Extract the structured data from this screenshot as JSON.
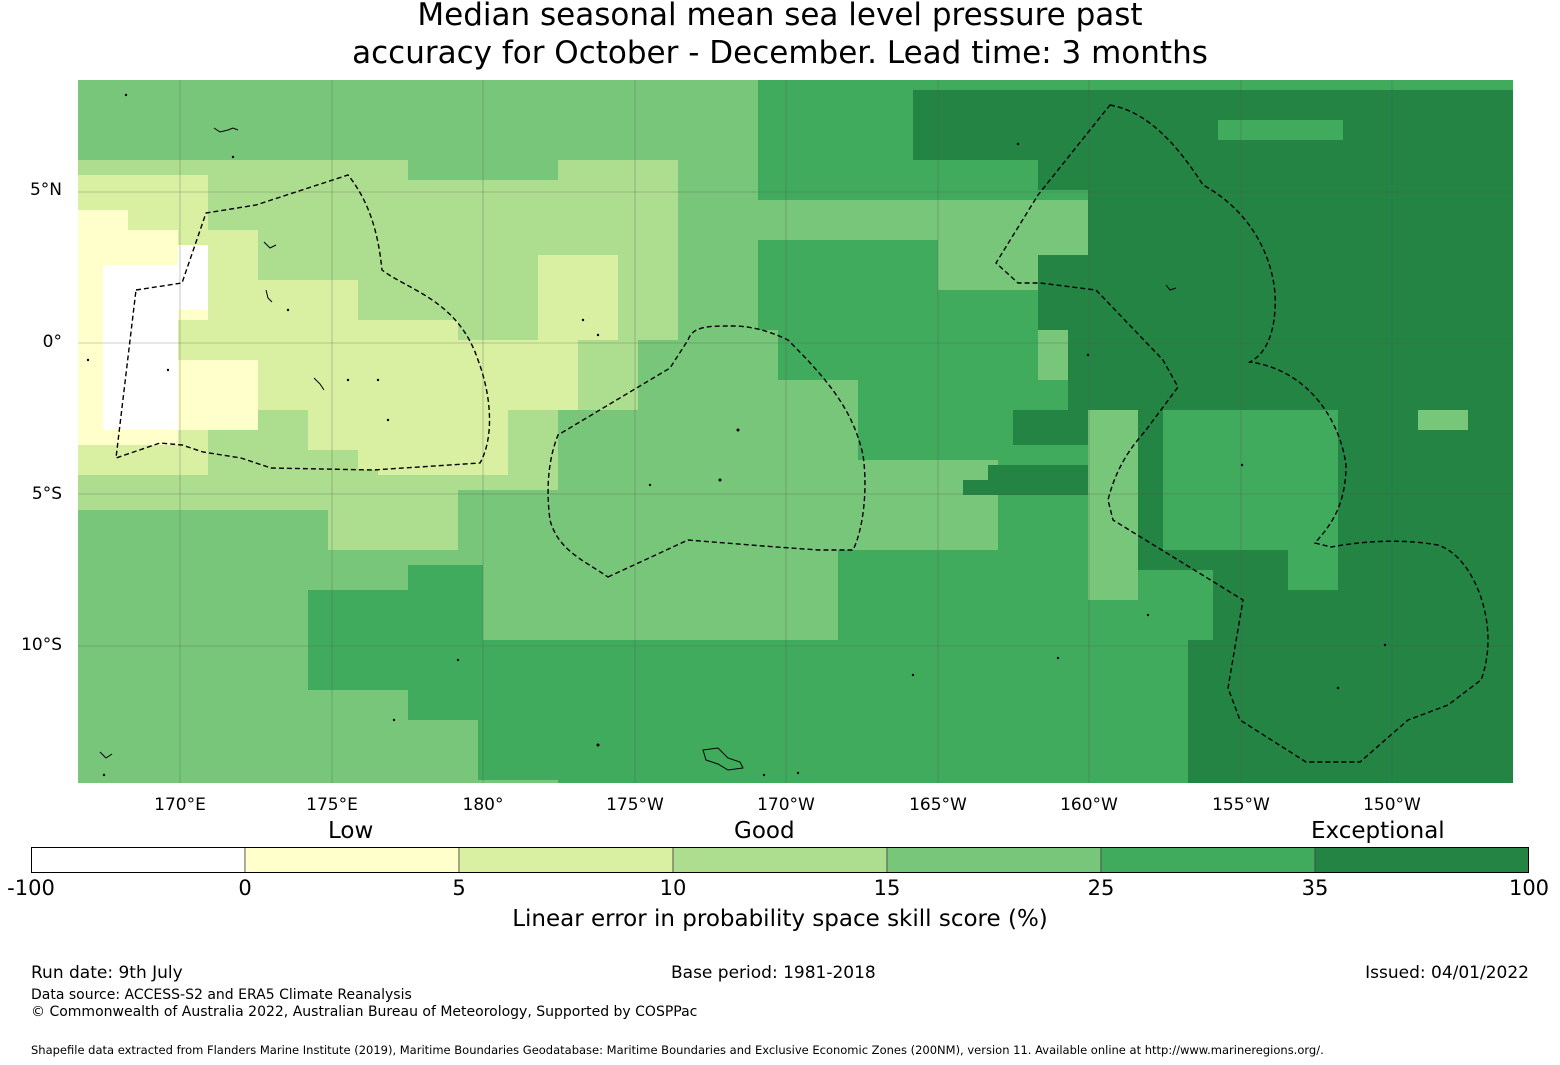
{
  "title": {
    "line1": "Median seasonal mean sea level pressure past",
    "line2": "accuracy for October - December. Lead time: 3 months"
  },
  "map": {
    "lat_labels": [
      "5°N",
      "0°",
      "5°S",
      "10°S"
    ],
    "lon_labels": [
      "170°E",
      "175°E",
      "180°",
      "175°W",
      "170°W",
      "165°W",
      "160°W",
      "155°W",
      "150°W"
    ],
    "grid": true
  },
  "colorbar": {
    "categories": [
      "Low",
      "Good",
      "Exceptional"
    ],
    "ticks": [
      "-100",
      "0",
      "5",
      "10",
      "15",
      "25",
      "35",
      "100"
    ],
    "colors": [
      "#ffffff",
      "#ffffcc",
      "#d9f0a3",
      "#addd8e",
      "#78c679",
      "#41ab5d",
      "#238443"
    ],
    "label": "Linear error in probability space skill score (%)"
  },
  "footer": {
    "run_date": "Run date: 9th July",
    "base_period": "Base period: 1981-2018",
    "issued": "Issued: 04/01/2022",
    "data_source": "Data source: ACCESS-S2 and ERA5 Climate Reanalysis",
    "copyright": "© Commonwealth of Australia 2022, Australian Bureau of Meteorology, Supported by COSPPac",
    "shapefile": "Shapefile data extracted from Flanders Marine Institute (2019), Maritime Boundaries Geodatabase: Maritime Boundaries and Exclusive Economic Zones (200NM), version 11. Available online at http://www.marineregions.org/."
  }
}
